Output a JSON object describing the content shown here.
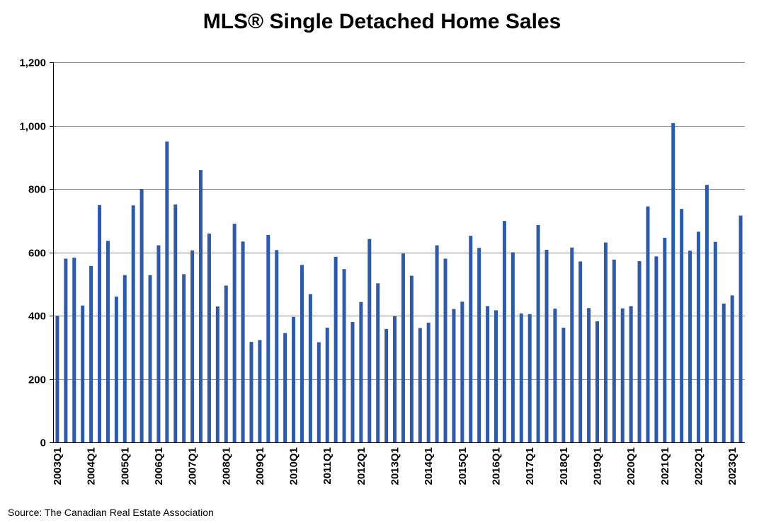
{
  "chart_data": {
    "type": "bar",
    "title": "MLS® Single Detached Home Sales",
    "source": "Source: The Canadian Real Estate Association",
    "ylim": [
      0,
      1200
    ],
    "yticks": [
      0,
      200,
      400,
      600,
      800,
      1000,
      1200
    ],
    "ytick_labels": [
      "0",
      "200",
      "400",
      "600",
      "800",
      "1,000",
      "1,200"
    ],
    "grid": true,
    "bar_color": "#2E5AA8",
    "categories": [
      "2003Q1",
      "2003Q2",
      "2003Q3",
      "2003Q4",
      "2004Q1",
      "2004Q2",
      "2004Q3",
      "2004Q4",
      "2005Q1",
      "2005Q2",
      "2005Q3",
      "2005Q4",
      "2006Q1",
      "2006Q2",
      "2006Q3",
      "2006Q4",
      "2007Q1",
      "2007Q2",
      "2007Q3",
      "2007Q4",
      "2008Q1",
      "2008Q2",
      "2008Q3",
      "2008Q4",
      "2009Q1",
      "2009Q2",
      "2009Q3",
      "2009Q4",
      "2010Q1",
      "2010Q2",
      "2010Q3",
      "2010Q4",
      "2011Q1",
      "2011Q2",
      "2011Q3",
      "2011Q4",
      "2012Q1",
      "2012Q2",
      "2012Q3",
      "2012Q4",
      "2013Q1",
      "2013Q2",
      "2013Q3",
      "2013Q4",
      "2014Q1",
      "2014Q2",
      "2014Q3",
      "2014Q4",
      "2015Q1",
      "2015Q2",
      "2015Q3",
      "2015Q4",
      "2016Q1",
      "2016Q2",
      "2016Q3",
      "2016Q4",
      "2017Q1",
      "2017Q2",
      "2017Q3",
      "2017Q4",
      "2018Q1",
      "2018Q2",
      "2018Q3",
      "2018Q4",
      "2019Q1",
      "2019Q2",
      "2019Q3",
      "2019Q4",
      "2020Q1",
      "2020Q2",
      "2020Q3",
      "2020Q4",
      "2021Q1",
      "2021Q2",
      "2021Q3",
      "2021Q4",
      "2022Q1",
      "2022Q2",
      "2022Q3",
      "2022Q4",
      "2023Q1",
      "2023Q2"
    ],
    "x_tick_labels": [
      "2003Q1",
      "2004Q1",
      "2005Q1",
      "2006Q1",
      "2007Q1",
      "2008Q1",
      "2009Q1",
      "2010Q1",
      "2011Q1",
      "2012Q1",
      "2013Q1",
      "2014Q1",
      "2015Q1",
      "2016Q1",
      "2017Q1",
      "2018Q1",
      "2019Q1",
      "2020Q1",
      "2021Q1",
      "2022Q1",
      "2023Q1"
    ],
    "values": [
      400,
      580,
      583,
      432,
      557,
      749,
      636,
      460,
      528,
      748,
      800,
      528,
      622,
      950,
      751,
      531,
      606,
      860,
      659,
      429,
      495,
      690,
      634,
      317,
      323,
      655,
      607,
      345,
      396,
      560,
      468,
      316,
      362,
      586,
      547,
      380,
      443,
      642,
      502,
      358,
      398,
      596,
      526,
      361,
      378,
      622,
      580,
      421,
      444,
      652,
      614,
      430,
      417,
      699,
      600,
      407,
      405,
      686,
      608,
      422,
      362,
      615,
      571,
      424,
      382,
      631,
      577,
      423,
      430,
      572,
      745,
      587,
      646,
      1008,
      737,
      605,
      665,
      813,
      633,
      438,
      464,
      716
    ]
  }
}
